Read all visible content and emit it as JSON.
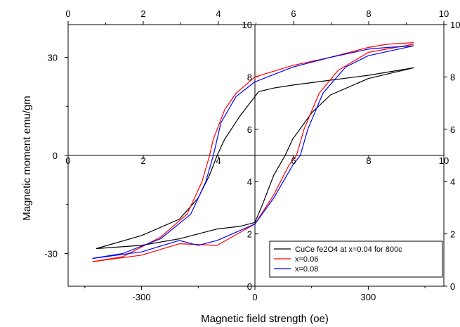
{
  "chart_data": {
    "type": "line",
    "xlabel": "Magnetic field strength (oe)",
    "ylabel": "Magnetic moment emu/gm",
    "xlim": [
      -500,
      500
    ],
    "ylim": [
      -40,
      40
    ],
    "x_ticks": [
      -300,
      0,
      300
    ],
    "y_ticks": [
      -30,
      0,
      30
    ],
    "x_tick_labels": [
      "-300",
      "0",
      "300"
    ],
    "y_tick_labels": [
      "-30",
      "0",
      "30"
    ],
    "top_ticks": [
      0,
      2,
      4,
      6,
      8,
      10
    ],
    "top_tick_labels": [
      "0",
      "2",
      "4",
      "6",
      "8",
      "10"
    ],
    "right_ticks": [
      0,
      2,
      4,
      6,
      8,
      10
    ],
    "right_tick_labels": [
      "0",
      "2",
      "4",
      "6",
      "8",
      "10"
    ],
    "inner_y_ticks": [
      0,
      2,
      4,
      6,
      8,
      10
    ],
    "inner_y_tick_labels": [
      "0",
      "2",
      "4",
      "6",
      "8",
      "10"
    ],
    "inner_x_ticks": [
      0,
      2,
      4,
      6,
      8,
      10
    ],
    "inner_x_tick_labels": [
      "0",
      "2",
      "4",
      "6",
      "8",
      "10"
    ],
    "grid": false,
    "legend": "bottom-right",
    "series": [
      {
        "name": "CuCe fe2O4 at x=0.04 for 800c",
        "color": "#000000",
        "upper_branch": [
          [
            420,
            26.8
          ],
          [
            300,
            24.5
          ],
          [
            200,
            23
          ],
          [
            100,
            21.5
          ],
          [
            50,
            20.6
          ],
          [
            10,
            19.5
          ],
          [
            0,
            18
          ],
          [
            -40,
            12
          ],
          [
            -80,
            5
          ],
          [
            -100,
            0
          ],
          [
            -120,
            -6
          ],
          [
            -150,
            -13
          ],
          [
            -200,
            -19.5
          ],
          [
            -300,
            -24.5
          ],
          [
            -420,
            -28.5
          ]
        ],
        "lower_branch": [
          [
            -420,
            -28.5
          ],
          [
            -300,
            -27.5
          ],
          [
            -200,
            -25.5
          ],
          [
            -100,
            -22.5
          ],
          [
            -40,
            -21.7
          ],
          [
            0,
            -20.5
          ],
          [
            20,
            -15
          ],
          [
            50,
            -6
          ],
          [
            70,
            -2
          ],
          [
            80,
            0
          ],
          [
            100,
            5
          ],
          [
            150,
            13
          ],
          [
            200,
            18.5
          ],
          [
            300,
            23.5
          ],
          [
            420,
            26.8
          ]
        ]
      },
      {
        "name": "x=0.06",
        "color": "#ff0000",
        "upper_branch": [
          [
            420,
            34.5
          ],
          [
            350,
            34
          ],
          [
            300,
            33
          ],
          [
            200,
            30
          ],
          [
            100,
            27.5
          ],
          [
            0,
            24
          ],
          [
            -50,
            19
          ],
          [
            -80,
            14
          ],
          [
            -110,
            5
          ],
          [
            -120,
            0
          ],
          [
            -140,
            -8
          ],
          [
            -180,
            -18
          ],
          [
            -250,
            -25
          ],
          [
            -350,
            -31
          ],
          [
            -430,
            -32.5
          ]
        ],
        "lower_branch": [
          [
            -430,
            -32.5
          ],
          [
            -300,
            -30.5
          ],
          [
            -200,
            -27
          ],
          [
            -100,
            -27.5
          ],
          [
            0,
            -21
          ],
          [
            50,
            -12
          ],
          [
            90,
            -3
          ],
          [
            110,
            0
          ],
          [
            130,
            8
          ],
          [
            170,
            19
          ],
          [
            220,
            26
          ],
          [
            300,
            31.5
          ],
          [
            420,
            34
          ]
        ]
      },
      {
        "name": "x=0.08",
        "color": "#0000ff",
        "upper_branch": [
          [
            420,
            33.5
          ],
          [
            350,
            33
          ],
          [
            300,
            32.5
          ],
          [
            200,
            30
          ],
          [
            100,
            27
          ],
          [
            0,
            22.5
          ],
          [
            -50,
            18
          ],
          [
            -90,
            10
          ],
          [
            -110,
            0
          ],
          [
            -130,
            -8
          ],
          [
            -170,
            -18
          ],
          [
            -250,
            -25.5
          ],
          [
            -350,
            -30
          ],
          [
            -430,
            -31.5
          ]
        ],
        "lower_branch": [
          [
            -430,
            -31.5
          ],
          [
            -300,
            -29.5
          ],
          [
            -200,
            -26
          ],
          [
            -150,
            -27.5
          ],
          [
            -100,
            -26
          ],
          [
            0,
            -21
          ],
          [
            50,
            -13
          ],
          [
            100,
            -3
          ],
          [
            120,
            0
          ],
          [
            140,
            8
          ],
          [
            180,
            19
          ],
          [
            240,
            27
          ],
          [
            300,
            30.5
          ],
          [
            420,
            33.5
          ]
        ]
      }
    ]
  }
}
